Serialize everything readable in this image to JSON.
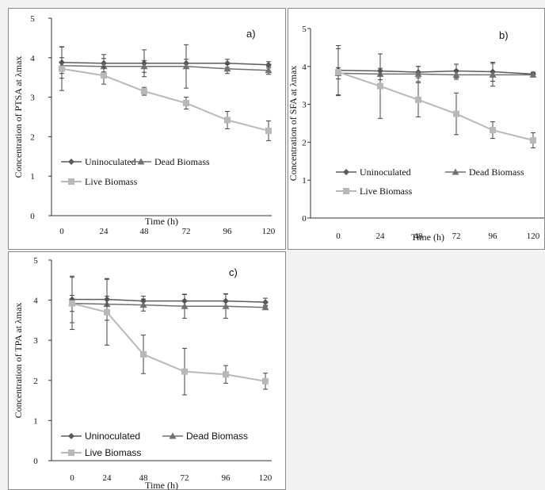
{
  "colors": {
    "Uninoculated": "#5a5a5a",
    "Dead Biomass": "#707070",
    "Live Biomass": "#b8b8b8",
    "axis": "#333333",
    "background": "#f2f2f2"
  },
  "chart_data": [
    {
      "type": "line",
      "panel_label": "a)",
      "ylabel": "Concentration of PTSA at λmax",
      "xlabel": "Time (h)",
      "x": [
        0,
        24,
        48,
        72,
        96,
        120
      ],
      "x_tick_labels": [
        "0",
        "24",
        "48",
        "72",
        "96",
        "120"
      ],
      "ylim": [
        0,
        5
      ],
      "y_tick_labels": [
        "0",
        "1",
        "2",
        "3",
        "4",
        "5"
      ],
      "grid": false,
      "legend_position": "bottom-left",
      "series": [
        {
          "name": "Uninoculated",
          "marker": "diamond",
          "values": [
            3.88,
            3.86,
            3.86,
            3.86,
            3.86,
            3.82
          ],
          "errors": [
            0.4,
            0.22,
            0.34,
            0.1,
            0.1,
            0.08
          ]
        },
        {
          "name": "Dead Biomass",
          "marker": "triangle",
          "values": [
            3.8,
            3.78,
            3.78,
            3.78,
            3.72,
            3.68
          ],
          "errors": [
            0.2,
            0.2,
            0.15,
            0.55,
            0.12,
            0.1
          ]
        },
        {
          "name": "Live Biomass",
          "marker": "square",
          "values": [
            3.72,
            3.55,
            3.15,
            2.85,
            2.42,
            2.15
          ],
          "errors": [
            0.55,
            0.22,
            0.1,
            0.15,
            0.22,
            0.25
          ]
        }
      ]
    },
    {
      "type": "line",
      "panel_label": "b)",
      "ylabel": "Concentration of SFA at λmax",
      "xlabel": "Time (h)",
      "x": [
        0,
        24,
        48,
        72,
        96,
        120
      ],
      "x_tick_labels": [
        "0",
        "24",
        "48",
        "72",
        "96",
        "120"
      ],
      "ylim": [
        0,
        5
      ],
      "y_tick_labels": [
        "0",
        "1",
        "2",
        "3",
        "4",
        "5"
      ],
      "grid": false,
      "legend_position": "bottom-left",
      "series": [
        {
          "name": "Uninoculated",
          "marker": "diamond",
          "values": [
            3.9,
            3.88,
            3.85,
            3.88,
            3.86,
            3.8
          ],
          "errors": [
            0.65,
            0.45,
            0.15,
            0.18,
            0.25,
            0.05
          ]
        },
        {
          "name": "Dead Biomass",
          "marker": "triangle",
          "values": [
            3.82,
            3.8,
            3.8,
            3.78,
            3.78,
            3.78
          ],
          "errors": [
            0.15,
            0.15,
            0.2,
            0.12,
            0.3,
            0.05
          ]
        },
        {
          "name": "Live Biomass",
          "marker": "square",
          "values": [
            3.85,
            3.48,
            3.12,
            2.75,
            2.32,
            2.05
          ],
          "errors": [
            0.62,
            0.85,
            0.45,
            0.55,
            0.22,
            0.2
          ]
        }
      ]
    },
    {
      "type": "line",
      "panel_label": "c)",
      "ylabel": "Concentration of TPA at λmax",
      "xlabel": "Time (h)",
      "x": [
        0,
        24,
        48,
        72,
        96,
        120
      ],
      "x_tick_labels": [
        "0",
        "24",
        "48",
        "72",
        "96",
        "120"
      ],
      "ylim": [
        0,
        5
      ],
      "y_tick_labels": [
        "0",
        "1",
        "2",
        "3",
        "4",
        "5"
      ],
      "grid": false,
      "legend_position": "bottom-left",
      "series": [
        {
          "name": "Uninoculated",
          "marker": "diamond",
          "values": [
            4.02,
            4.02,
            3.98,
            3.98,
            3.98,
            3.95
          ],
          "errors": [
            0.58,
            0.52,
            0.12,
            0.16,
            0.18,
            0.1
          ]
        },
        {
          "name": "Dead Biomass",
          "marker": "triangle",
          "values": [
            3.92,
            3.9,
            3.88,
            3.85,
            3.85,
            3.82
          ],
          "errors": [
            0.2,
            0.2,
            0.15,
            0.3,
            0.3,
            0.05
          ]
        },
        {
          "name": "Live Biomass",
          "marker": "square",
          "values": [
            3.92,
            3.7,
            2.65,
            2.22,
            2.15,
            1.98
          ],
          "errors": [
            0.65,
            0.82,
            0.48,
            0.58,
            0.22,
            0.2
          ]
        }
      ]
    }
  ]
}
